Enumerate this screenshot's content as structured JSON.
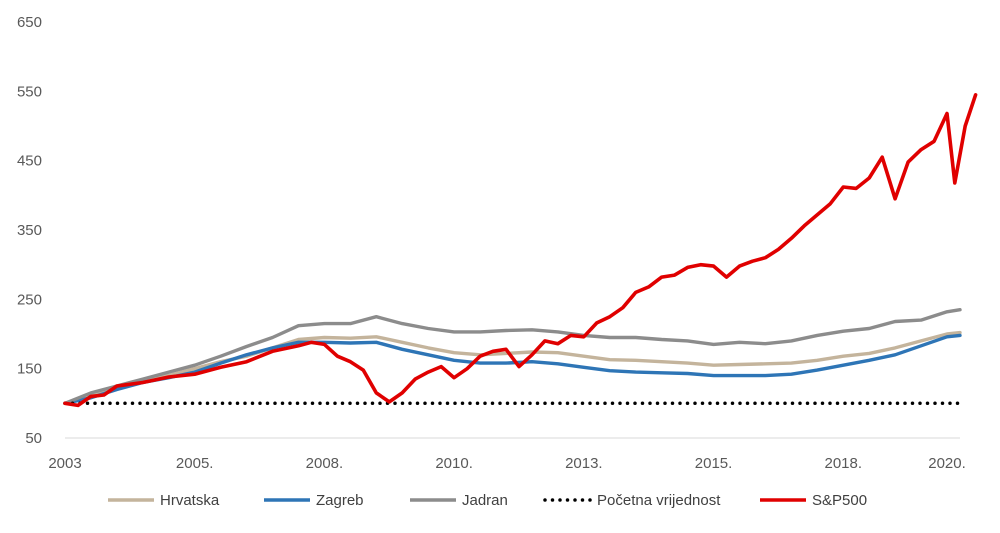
{
  "chart_data": {
    "type": "line",
    "title": "",
    "xlabel": "",
    "ylabel": "",
    "ylim": [
      50,
      650
    ],
    "y_ticks": [
      50,
      150,
      250,
      350,
      450,
      550,
      650
    ],
    "x_range": [
      2003.0,
      2020.25
    ],
    "x_ticks": [
      {
        "value": 2003.0,
        "label": "2003"
      },
      {
        "value": 2005.5,
        "label": "2005."
      },
      {
        "value": 2008.0,
        "label": "2008."
      },
      {
        "value": 2010.5,
        "label": "2010."
      },
      {
        "value": 2013.0,
        "label": "2013."
      },
      {
        "value": 2015.5,
        "label": "2015."
      },
      {
        "value": 2018.0,
        "label": "2018."
      },
      {
        "value": 2020.0,
        "label": "2020."
      }
    ],
    "grid": false,
    "legend_position": "bottom",
    "series": [
      {
        "name": "Hrvatska",
        "color": "#C4B49C",
        "style": "solid",
        "points": [
          [
            2003.0,
            100
          ],
          [
            2003.5,
            110
          ],
          [
            2004.0,
            125
          ],
          [
            2004.5,
            133
          ],
          [
            2005.0,
            140
          ],
          [
            2005.5,
            150
          ],
          [
            2006.0,
            160
          ],
          [
            2006.5,
            168
          ],
          [
            2007.0,
            180
          ],
          [
            2007.5,
            192
          ],
          [
            2008.0,
            195
          ],
          [
            2008.5,
            194
          ],
          [
            2009.0,
            196
          ],
          [
            2009.5,
            188
          ],
          [
            2010.0,
            180
          ],
          [
            2010.5,
            173
          ],
          [
            2011.0,
            170
          ],
          [
            2011.5,
            172
          ],
          [
            2012.0,
            174
          ],
          [
            2012.5,
            173
          ],
          [
            2013.0,
            168
          ],
          [
            2013.5,
            163
          ],
          [
            2014.0,
            162
          ],
          [
            2014.5,
            160
          ],
          [
            2015.0,
            158
          ],
          [
            2015.5,
            155
          ],
          [
            2016.0,
            156
          ],
          [
            2016.5,
            157
          ],
          [
            2017.0,
            158
          ],
          [
            2017.5,
            162
          ],
          [
            2018.0,
            168
          ],
          [
            2018.5,
            172
          ],
          [
            2019.0,
            180
          ],
          [
            2019.5,
            190
          ],
          [
            2020.0,
            200
          ],
          [
            2020.25,
            202
          ]
        ]
      },
      {
        "name": "Zagreb",
        "color": "#2E75B6",
        "style": "solid",
        "points": [
          [
            2003.0,
            100
          ],
          [
            2003.5,
            108
          ],
          [
            2004.0,
            120
          ],
          [
            2004.5,
            130
          ],
          [
            2005.0,
            137
          ],
          [
            2005.5,
            145
          ],
          [
            2006.0,
            158
          ],
          [
            2006.5,
            170
          ],
          [
            2007.0,
            180
          ],
          [
            2007.5,
            188
          ],
          [
            2008.0,
            188
          ],
          [
            2008.5,
            187
          ],
          [
            2009.0,
            188
          ],
          [
            2009.5,
            178
          ],
          [
            2010.0,
            170
          ],
          [
            2010.5,
            162
          ],
          [
            2011.0,
            158
          ],
          [
            2011.5,
            158
          ],
          [
            2012.0,
            160
          ],
          [
            2012.5,
            157
          ],
          [
            2013.0,
            152
          ],
          [
            2013.5,
            147
          ],
          [
            2014.0,
            145
          ],
          [
            2014.5,
            144
          ],
          [
            2015.0,
            143
          ],
          [
            2015.5,
            140
          ],
          [
            2016.0,
            140
          ],
          [
            2016.5,
            140
          ],
          [
            2017.0,
            142
          ],
          [
            2017.5,
            148
          ],
          [
            2018.0,
            155
          ],
          [
            2018.5,
            162
          ],
          [
            2019.0,
            170
          ],
          [
            2019.5,
            183
          ],
          [
            2020.0,
            196
          ],
          [
            2020.25,
            198
          ]
        ]
      },
      {
        "name": "Jadran",
        "color": "#8C8C8C",
        "style": "solid",
        "points": [
          [
            2003.0,
            100
          ],
          [
            2003.5,
            115
          ],
          [
            2004.0,
            125
          ],
          [
            2004.5,
            135
          ],
          [
            2005.0,
            145
          ],
          [
            2005.5,
            155
          ],
          [
            2006.0,
            168
          ],
          [
            2006.5,
            182
          ],
          [
            2007.0,
            195
          ],
          [
            2007.5,
            212
          ],
          [
            2008.0,
            215
          ],
          [
            2008.5,
            215
          ],
          [
            2009.0,
            225
          ],
          [
            2009.5,
            215
          ],
          [
            2010.0,
            208
          ],
          [
            2010.5,
            203
          ],
          [
            2011.0,
            203
          ],
          [
            2011.5,
            205
          ],
          [
            2012.0,
            206
          ],
          [
            2012.5,
            203
          ],
          [
            2013.0,
            198
          ],
          [
            2013.5,
            195
          ],
          [
            2014.0,
            195
          ],
          [
            2014.5,
            192
          ],
          [
            2015.0,
            190
          ],
          [
            2015.5,
            185
          ],
          [
            2016.0,
            188
          ],
          [
            2016.5,
            186
          ],
          [
            2017.0,
            190
          ],
          [
            2017.5,
            198
          ],
          [
            2018.0,
            204
          ],
          [
            2018.5,
            208
          ],
          [
            2019.0,
            218
          ],
          [
            2019.5,
            220
          ],
          [
            2020.0,
            232
          ],
          [
            2020.25,
            235
          ]
        ]
      },
      {
        "name": "Početna vrijednost",
        "color": "#000000",
        "style": "dotted",
        "points": [
          [
            2003.0,
            100
          ],
          [
            2020.25,
            100
          ]
        ]
      },
      {
        "name": "S&P500",
        "color": "#E00000",
        "style": "solid",
        "points": [
          [
            2003.0,
            100
          ],
          [
            2003.25,
            97
          ],
          [
            2003.5,
            110
          ],
          [
            2003.75,
            112
          ],
          [
            2004.0,
            125
          ],
          [
            2004.5,
            130
          ],
          [
            2005.0,
            138
          ],
          [
            2005.5,
            142
          ],
          [
            2006.0,
            152
          ],
          [
            2006.5,
            160
          ],
          [
            2007.0,
            175
          ],
          [
            2007.5,
            183
          ],
          [
            2007.75,
            188
          ],
          [
            2008.0,
            185
          ],
          [
            2008.25,
            168
          ],
          [
            2008.5,
            160
          ],
          [
            2008.75,
            148
          ],
          [
            2009.0,
            115
          ],
          [
            2009.25,
            102
          ],
          [
            2009.5,
            115
          ],
          [
            2009.75,
            135
          ],
          [
            2010.0,
            145
          ],
          [
            2010.25,
            153
          ],
          [
            2010.5,
            137
          ],
          [
            2010.75,
            150
          ],
          [
            2011.0,
            168
          ],
          [
            2011.25,
            175
          ],
          [
            2011.5,
            178
          ],
          [
            2011.75,
            153
          ],
          [
            2012.0,
            170
          ],
          [
            2012.25,
            190
          ],
          [
            2012.5,
            186
          ],
          [
            2012.75,
            198
          ],
          [
            2013.0,
            196
          ],
          [
            2013.25,
            216
          ],
          [
            2013.5,
            225
          ],
          [
            2013.75,
            238
          ],
          [
            2014.0,
            260
          ],
          [
            2014.25,
            268
          ],
          [
            2014.5,
            282
          ],
          [
            2014.75,
            285
          ],
          [
            2015.0,
            296
          ],
          [
            2015.25,
            300
          ],
          [
            2015.5,
            298
          ],
          [
            2015.75,
            282
          ],
          [
            2016.0,
            298
          ],
          [
            2016.25,
            305
          ],
          [
            2016.5,
            310
          ],
          [
            2016.75,
            322
          ],
          [
            2017.0,
            338
          ],
          [
            2017.25,
            356
          ],
          [
            2017.5,
            372
          ],
          [
            2017.75,
            388
          ],
          [
            2018.0,
            412
          ],
          [
            2018.25,
            410
          ],
          [
            2018.5,
            425
          ],
          [
            2018.75,
            455
          ],
          [
            2019.0,
            395
          ],
          [
            2019.25,
            448
          ],
          [
            2019.5,
            466
          ],
          [
            2019.75,
            478
          ],
          [
            2020.0,
            518
          ],
          [
            2020.15,
            418
          ],
          [
            2020.35,
            500
          ],
          [
            2020.55,
            545
          ]
        ]
      }
    ]
  }
}
